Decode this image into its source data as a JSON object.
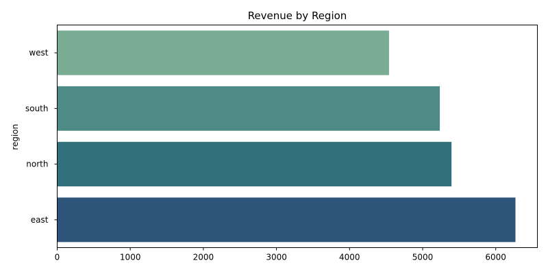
{
  "chart_data": {
    "type": "bar",
    "orientation": "horizontal",
    "title": "Revenue by Region",
    "xlabel": "",
    "ylabel": "region",
    "categories": [
      "west",
      "south",
      "north",
      "east"
    ],
    "values": [
      4540,
      5235,
      5395,
      6270
    ],
    "colors": [
      "#7aab93",
      "#4f8b86",
      "#33707e",
      "#2e5579"
    ],
    "xlim": [
      0,
      6570
    ],
    "xticks": [
      0,
      1000,
      2000,
      3000,
      4000,
      5000,
      6000
    ],
    "grid": false,
    "legend": "none"
  }
}
